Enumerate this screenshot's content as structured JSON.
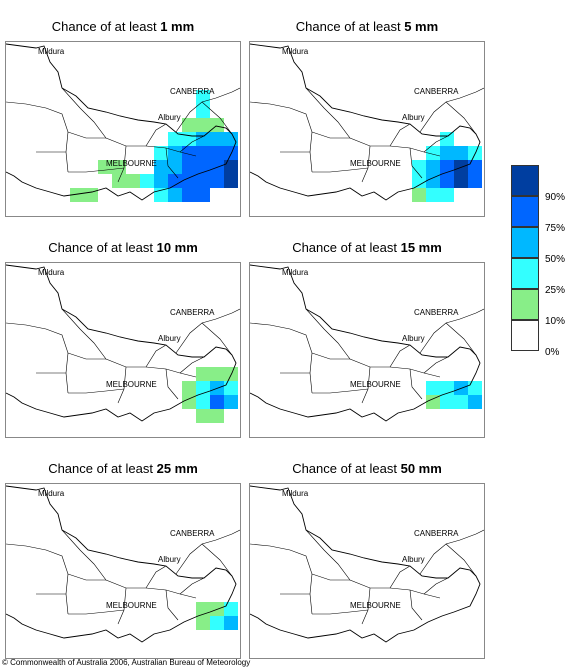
{
  "title_prefix": "Chance of at least",
  "panels": [
    {
      "threshold": "1 mm",
      "cells": [
        [
          10,
          2,
          3
        ],
        [
          10,
          3,
          3
        ],
        [
          9,
          4,
          4
        ],
        [
          10,
          4,
          4
        ],
        [
          11,
          4,
          4
        ],
        [
          8,
          5,
          3
        ],
        [
          9,
          5,
          3
        ],
        [
          10,
          5,
          2
        ],
        [
          11,
          5,
          2
        ],
        [
          12,
          5,
          2
        ],
        [
          7,
          6,
          3
        ],
        [
          8,
          6,
          2
        ],
        [
          9,
          6,
          1
        ],
        [
          10,
          6,
          1
        ],
        [
          11,
          6,
          1
        ],
        [
          12,
          6,
          1
        ],
        [
          7,
          7,
          2
        ],
        [
          8,
          7,
          2
        ],
        [
          9,
          7,
          1
        ],
        [
          10,
          7,
          1
        ],
        [
          11,
          7,
          1
        ],
        [
          12,
          7,
          0
        ],
        [
          6,
          8,
          3
        ],
        [
          7,
          8,
          2
        ],
        [
          8,
          8,
          1
        ],
        [
          9,
          8,
          1
        ],
        [
          10,
          8,
          1
        ],
        [
          11,
          8,
          1
        ],
        [
          12,
          8,
          0
        ],
        [
          7,
          9,
          3
        ],
        [
          8,
          9,
          2
        ],
        [
          9,
          9,
          1
        ],
        [
          10,
          9,
          1
        ],
        [
          3,
          7,
          4
        ],
        [
          4,
          7,
          4
        ],
        [
          1,
          9,
          4
        ],
        [
          2,
          9,
          4
        ],
        [
          4,
          8,
          4
        ],
        [
          5,
          8,
          4
        ]
      ]
    },
    {
      "threshold": "5 mm",
      "cells": [
        [
          10,
          5,
          3
        ],
        [
          9,
          6,
          3
        ],
        [
          10,
          6,
          2
        ],
        [
          11,
          6,
          2
        ],
        [
          12,
          6,
          3
        ],
        [
          8,
          7,
          3
        ],
        [
          9,
          7,
          2
        ],
        [
          10,
          7,
          1
        ],
        [
          11,
          7,
          0
        ],
        [
          12,
          7,
          1
        ],
        [
          8,
          8,
          3
        ],
        [
          9,
          8,
          2
        ],
        [
          10,
          8,
          1
        ],
        [
          11,
          8,
          0
        ],
        [
          12,
          8,
          1
        ],
        [
          8,
          9,
          4
        ],
        [
          9,
          9,
          3
        ],
        [
          10,
          9,
          3
        ]
      ]
    },
    {
      "threshold": "10 mm",
      "cells": [
        [
          10,
          6,
          4
        ],
        [
          11,
          6,
          4
        ],
        [
          12,
          6,
          4
        ],
        [
          9,
          7,
          4
        ],
        [
          10,
          7,
          3
        ],
        [
          11,
          7,
          2
        ],
        [
          12,
          7,
          3
        ],
        [
          9,
          8,
          4
        ],
        [
          10,
          8,
          3
        ],
        [
          11,
          8,
          1
        ],
        [
          12,
          8,
          2
        ],
        [
          10,
          9,
          4
        ],
        [
          11,
          9,
          4
        ]
      ]
    },
    {
      "threshold": "15 mm",
      "cells": [
        [
          11,
          7,
          4
        ],
        [
          9,
          7,
          3
        ],
        [
          10,
          7,
          3
        ],
        [
          11,
          7,
          2
        ],
        [
          12,
          7,
          3
        ],
        [
          9,
          8,
          4
        ],
        [
          10,
          8,
          3
        ],
        [
          11,
          8,
          3
        ],
        [
          12,
          8,
          2
        ]
      ]
    },
    {
      "threshold": "25 mm",
      "cells": [
        [
          10,
          7,
          4
        ],
        [
          11,
          7,
          4
        ],
        [
          12,
          7,
          3
        ],
        [
          10,
          8,
          4
        ],
        [
          11,
          8,
          3
        ],
        [
          12,
          8,
          2
        ]
      ]
    },
    {
      "threshold": "50 mm",
      "cells": []
    }
  ],
  "places": {
    "mildura": "Mildura",
    "canberra": "CANBERRA",
    "albury": "Albury",
    "melbourne": "MELBOURNE"
  },
  "legend": {
    "items": [
      {
        "label": "90%",
        "color": "#003ea0"
      },
      {
        "label": "75%",
        "color": "#0066ff"
      },
      {
        "label": "50%",
        "color": "#00b8ff"
      },
      {
        "label": "25%",
        "color": "#33ffff"
      },
      {
        "label": "10%",
        "color": "#88ee88"
      },
      {
        "label": "0%",
        "color": "#ffffff"
      }
    ]
  },
  "colors": {
    "outline": "#000000",
    "border": "#888888",
    "cell_scale": [
      "#003ea0",
      "#0066ff",
      "#00b8ff",
      "#33ffff",
      "#88ee88"
    ]
  },
  "copyright": "© Commonwealth of Australia 2006, Australian Bureau of Meteorology"
}
